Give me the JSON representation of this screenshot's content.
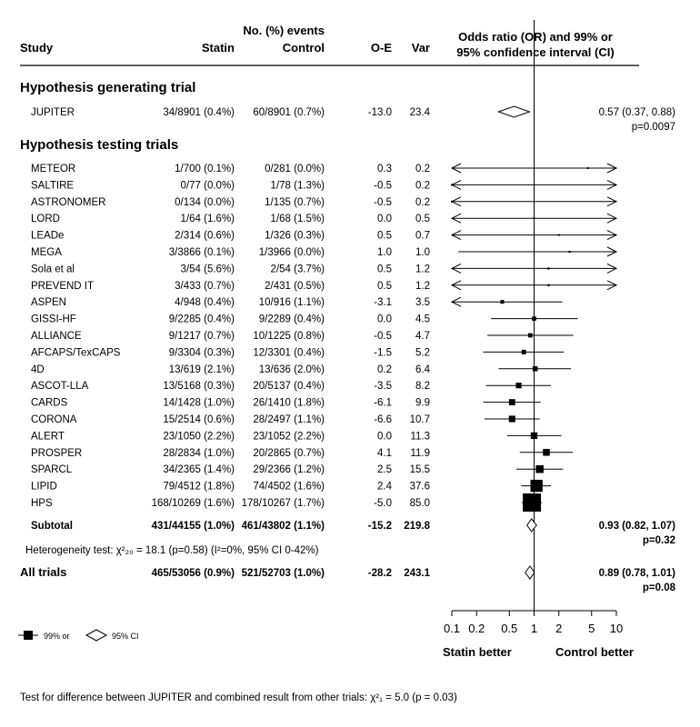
{
  "headers": {
    "study": "Study",
    "events_group": "No. (%) events",
    "statin": "Statin",
    "control": "Control",
    "oe": "O-E",
    "var": "Var",
    "ci_line1": "Odds ratio (OR) and 99% or",
    "ci_line2": "95% confidence interval (CI)"
  },
  "sections": {
    "generating": "Hypothesis generating trial",
    "testing": "Hypothesis testing trials"
  },
  "heterogeneity_text": "Heterogeneity test: χ²₂₀ = 18.1 (p=0.58)  (I²=0%, 95% CI 0-42%)",
  "legend": {
    "ci99": "99% or",
    "ci95": "95% CI"
  },
  "axis": {
    "ticks": [
      "0.1",
      "0.2",
      "0.5",
      "1",
      "2",
      "5",
      "10"
    ],
    "tick_values": [
      0.1,
      0.2,
      0.5,
      1,
      2,
      5,
      10
    ],
    "left_label": "Statin better",
    "right_label": "Control better",
    "scale": "log",
    "xlim": [
      0.1,
      10
    ]
  },
  "footnote": "Test for difference between JUPITER and combined result from other trials: χ²₁ = 5.0 (p = 0.03)",
  "chart_data": {
    "type": "forest",
    "title": "",
    "xlabel": "",
    "generating": {
      "study": "JUPITER",
      "statin": "34/8901 (0.4%)",
      "control": "60/8901 (0.7%)",
      "oe": "-13.0",
      "var": "23.4",
      "or": 0.57,
      "lo": 0.37,
      "hi": 0.88,
      "ci_text": "0.57 (0.37, 0.88)",
      "p_text": "p=0.0097"
    },
    "trials": [
      {
        "study": "METEOR",
        "statin": "1/700 (0.1%)",
        "control": "0/281 (0.0%)",
        "oe": "0.3",
        "var": "0.2",
        "or": 4.5,
        "lo": 0.1,
        "hi": 10,
        "arrow_left": true,
        "arrow_right": true
      },
      {
        "study": "SALTIRE",
        "statin": "0/77 (0.0%)",
        "control": "1/78 (1.3%)",
        "oe": "-0.5",
        "var": "0.2",
        "or": 0.1,
        "lo": 0.1,
        "hi": 10,
        "arrow_left": true,
        "arrow_right": true
      },
      {
        "study": "ASTRONOMER",
        "statin": "0/134 (0.0%)",
        "control": "1/135 (0.7%)",
        "oe": "-0.5",
        "var": "0.2",
        "or": 0.1,
        "lo": 0.1,
        "hi": 10,
        "arrow_left": true,
        "arrow_right": true
      },
      {
        "study": "LORD",
        "statin": "1/64 (1.6%)",
        "control": "1/68 (1.5%)",
        "oe": "0.0",
        "var": "0.5",
        "or": 1.0,
        "lo": 0.1,
        "hi": 10,
        "arrow_left": true,
        "arrow_right": true
      },
      {
        "study": "LEADe",
        "statin": "2/314 (0.6%)",
        "control": "1/326 (0.3%)",
        "oe": "0.5",
        "var": "0.7",
        "or": 2.0,
        "lo": 0.1,
        "hi": 10,
        "arrow_left": true,
        "arrow_right": true
      },
      {
        "study": "MEGA",
        "statin": "3/3866 (0.1%)",
        "control": "1/3966 (0.0%)",
        "oe": "1.0",
        "var": "1.0",
        "or": 2.7,
        "lo": 0.12,
        "hi": 10,
        "arrow_left": false,
        "arrow_right": true
      },
      {
        "study": "Sola et al",
        "statin": "3/54 (5.6%)",
        "control": "2/54 (3.7%)",
        "oe": "0.5",
        "var": "1.2",
        "or": 1.5,
        "lo": 0.1,
        "hi": 10,
        "arrow_left": true,
        "arrow_right": true
      },
      {
        "study": "PREVEND IT",
        "statin": "3/433 (0.7%)",
        "control": "2/431 (0.5%)",
        "oe": "0.5",
        "var": "1.2",
        "or": 1.5,
        "lo": 0.1,
        "hi": 10,
        "arrow_left": true,
        "arrow_right": true
      },
      {
        "study": "ASPEN",
        "statin": "4/948 (0.4%)",
        "control": "10/916 (1.1%)",
        "oe": "-3.1",
        "var": "3.5",
        "or": 0.41,
        "lo": 0.1,
        "hi": 2.2,
        "arrow_left": true,
        "arrow_right": false
      },
      {
        "study": "GISSI-HF",
        "statin": "9/2285 (0.4%)",
        "control": "9/2289 (0.4%)",
        "oe": "0.0",
        "var": "4.5",
        "or": 1.0,
        "lo": 0.3,
        "hi": 3.4
      },
      {
        "study": "ALLIANCE",
        "statin": "9/1217 (0.7%)",
        "control": "10/1225 (0.8%)",
        "oe": "-0.5",
        "var": "4.7",
        "or": 0.9,
        "lo": 0.27,
        "hi": 3.0
      },
      {
        "study": "AFCAPS/TexCAPS",
        "statin": "9/3304 (0.3%)",
        "control": "12/3301 (0.4%)",
        "oe": "-1.5",
        "var": "5.2",
        "or": 0.75,
        "lo": 0.24,
        "hi": 2.3
      },
      {
        "study": "4D",
        "statin": "13/619 (2.1%)",
        "control": "13/636 (2.0%)",
        "oe": "0.2",
        "var": "6.4",
        "or": 1.03,
        "lo": 0.37,
        "hi": 2.8
      },
      {
        "study": "ASCOT-LLA",
        "statin": "13/5168 (0.3%)",
        "control": "20/5137 (0.4%)",
        "oe": "-3.5",
        "var": "8.2",
        "or": 0.65,
        "lo": 0.26,
        "hi": 1.6
      },
      {
        "study": "CARDS",
        "statin": "14/1428 (1.0%)",
        "control": "26/1410 (1.8%)",
        "oe": "-6.1",
        "var": "9.9",
        "or": 0.54,
        "lo": 0.24,
        "hi": 1.2
      },
      {
        "study": "CORONA",
        "statin": "15/2514 (0.6%)",
        "control": "28/2497 (1.1%)",
        "oe": "-6.6",
        "var": "10.7",
        "or": 0.54,
        "lo": 0.25,
        "hi": 1.17
      },
      {
        "study": "ALERT",
        "statin": "23/1050 (2.2%)",
        "control": "23/1052 (2.2%)",
        "oe": "0.0",
        "var": "11.3",
        "or": 1.0,
        "lo": 0.47,
        "hi": 2.15
      },
      {
        "study": "PROSPER",
        "statin": "28/2834 (1.0%)",
        "control": "20/2865 (0.7%)",
        "oe": "4.1",
        "var": "11.9",
        "or": 1.41,
        "lo": 0.67,
        "hi": 2.97
      },
      {
        "study": "SPARCL",
        "statin": "34/2365 (1.4%)",
        "control": "29/2366 (1.2%)",
        "oe": "2.5",
        "var": "15.5",
        "or": 1.17,
        "lo": 0.61,
        "hi": 2.25
      },
      {
        "study": "LIPID",
        "statin": "79/4512 (1.8%)",
        "control": "74/4502 (1.6%)",
        "oe": "2.4",
        "var": "37.6",
        "or": 1.07,
        "lo": 0.7,
        "hi": 1.6
      },
      {
        "study": "HPS",
        "statin": "168/10269 (1.6%)",
        "control": "178/10267 (1.7%)",
        "oe": "-5.0",
        "var": "85.0",
        "or": 0.94,
        "lo": 0.71,
        "hi": 1.24
      }
    ],
    "subtotal": {
      "study": "Subtotal",
      "statin": "431/44155 (1.0%)",
      "control": "461/43802 (1.1%)",
      "oe": "-15.2",
      "var": "219.8",
      "or": 0.93,
      "lo": 0.82,
      "hi": 1.07,
      "ci_text": "0.93 (0.82, 1.07)",
      "p_text": "p=0.32"
    },
    "all_trials": {
      "study": "All trials",
      "statin": "465/53056 (0.9%)",
      "control": "521/52703 (1.0%)",
      "oe": "-28.2",
      "var": "243.1",
      "or": 0.89,
      "lo": 0.78,
      "hi": 1.01,
      "ci_text": "0.89 (0.78, 1.01)",
      "p_text": "p=0.08"
    }
  }
}
